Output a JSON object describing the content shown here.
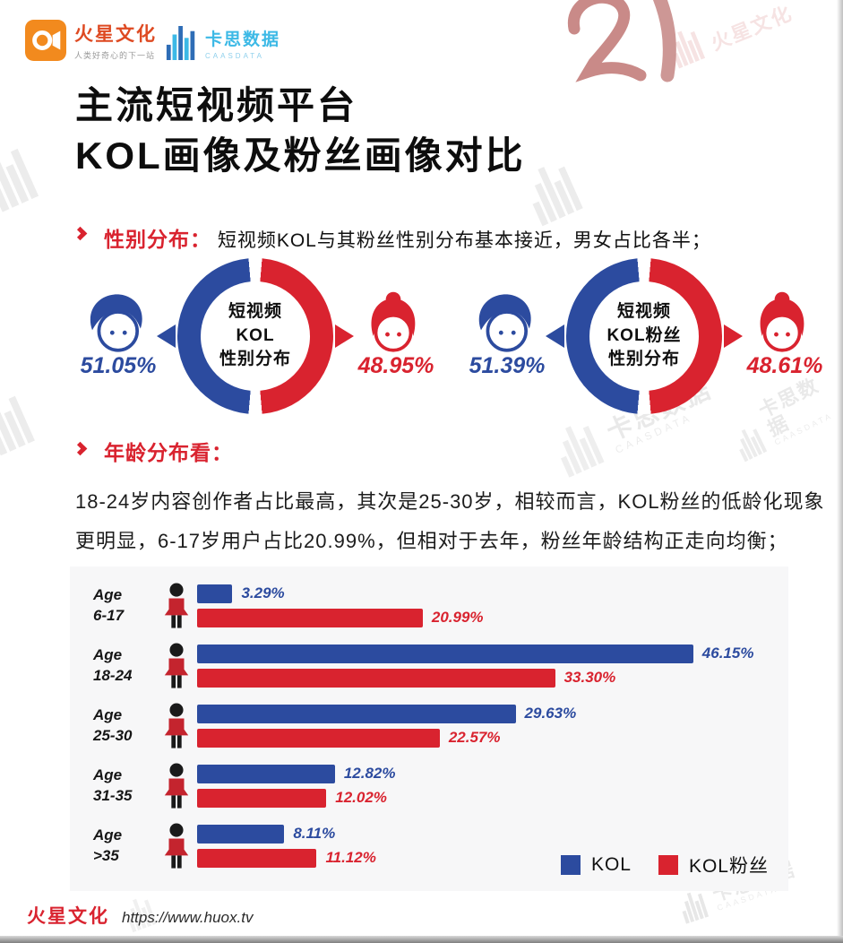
{
  "header": {
    "mars": {
      "name": "火星文化",
      "tagline": "人类好奇心的下一站"
    },
    "caas": {
      "name": "卡思数据",
      "sub": "CAASDATA"
    }
  },
  "decor": {
    "numeral": "2"
  },
  "title": {
    "line1": "主流短视频平台",
    "line2": "KOL画像及粉丝画像对比"
  },
  "gender": {
    "label": "性别分布：",
    "desc": "短视频KOL与其粉丝性别分布基本接近，男女占比各半；",
    "charts": [
      {
        "line1": "短视频",
        "line2": "KOL",
        "line3": "性别分布",
        "male": "51.05%",
        "female": "48.95%"
      },
      {
        "line1": "短视频",
        "line2": "KOL粉丝",
        "line3": "性别分布",
        "male": "51.39%",
        "female": "48.61%"
      }
    ]
  },
  "age": {
    "label": "年龄分布看：",
    "desc1": "18-24岁内容创作者占比最高，其次是25-30岁，相较而言，KOL粉丝的低龄化现象",
    "desc2": "更明显，6-17岁用户占比20.99%，但相对于去年，粉丝年龄结构正走向均衡；"
  },
  "chart_data": {
    "type": "bar",
    "orientation": "horizontal",
    "category_prefix": "Age",
    "categories": [
      "6-17",
      "18-24",
      "25-30",
      "31-35",
      ">35"
    ],
    "series": [
      {
        "name": "KOL",
        "color": "#2c4b9f",
        "values": [
          3.29,
          46.15,
          29.63,
          12.82,
          8.11
        ]
      },
      {
        "name": "KOL粉丝",
        "color": "#d9232f",
        "values": [
          20.99,
          33.3,
          22.57,
          12.02,
          11.12
        ]
      }
    ],
    "value_labels": [
      [
        "3.29%",
        "20.99%"
      ],
      [
        "46.15%",
        "33.30%"
      ],
      [
        "29.63%",
        "22.57%"
      ],
      [
        "12.82%",
        "12.02%"
      ],
      [
        "8.11%",
        "11.12%"
      ]
    ],
    "xlim": [
      0,
      50
    ],
    "grid": false,
    "legend": [
      "KOL",
      "KOL粉丝"
    ],
    "legend_position": "bottom-right"
  },
  "watermark": {
    "caas": "卡思数据",
    "caas_sub": "CAASDATA",
    "mars": "火星文化"
  },
  "footer": {
    "brand": "火星文化",
    "url": "https://www.huox.tv"
  },
  "colors": {
    "blue": "#2c4b9f",
    "red": "#d9232f",
    "orange": "#f28a1e",
    "cyan": "#3cb9e6",
    "pink": "#c5817e",
    "gray_watermark": "#dcdcdc"
  }
}
